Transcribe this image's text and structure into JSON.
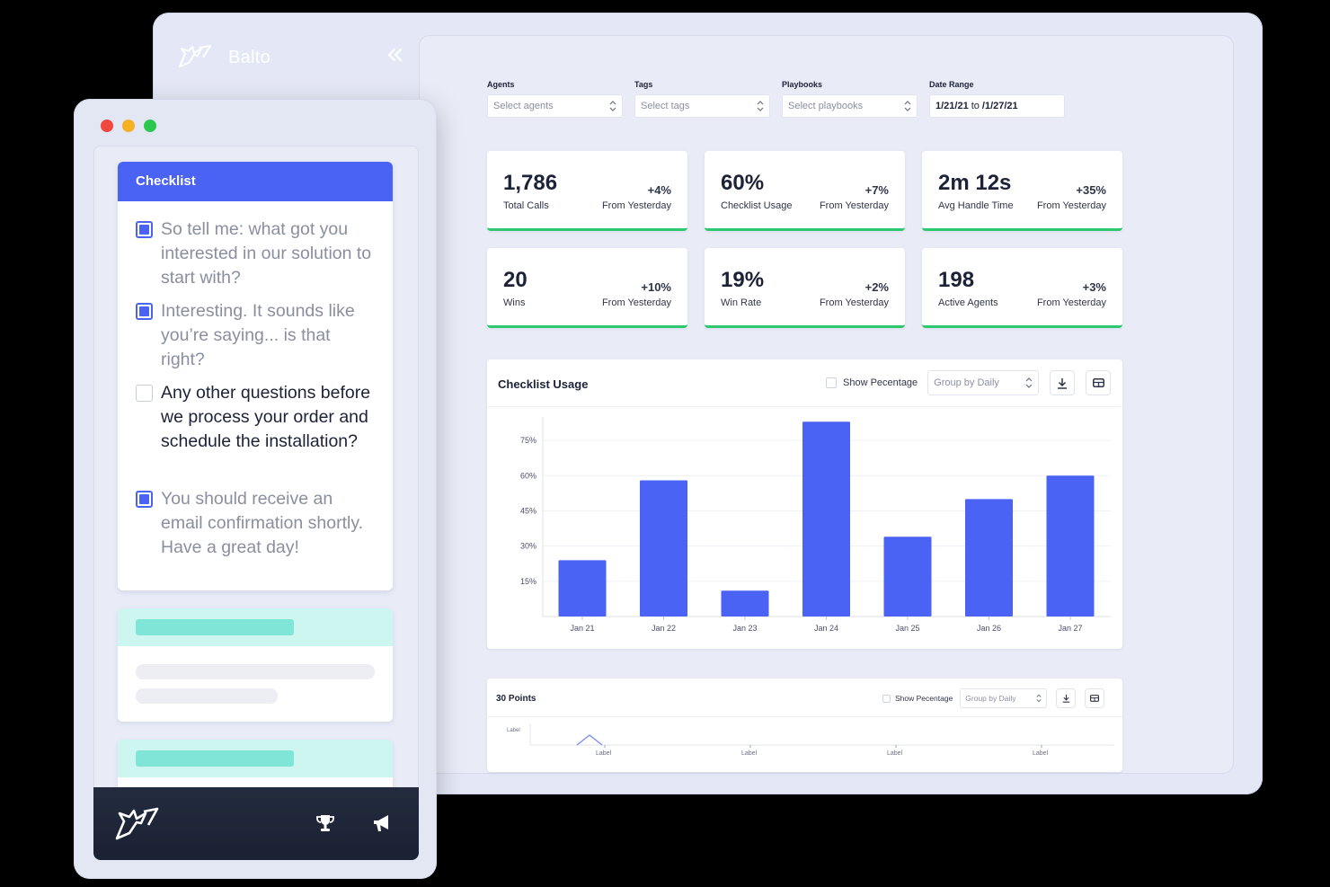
{
  "dashboard": {
    "brand": "Balto",
    "filters": [
      {
        "label": "Agents",
        "placeholder": "Select agents"
      },
      {
        "label": "Tags",
        "placeholder": "Select tags"
      },
      {
        "label": "Playbooks",
        "placeholder": "Select playbooks"
      }
    ],
    "date_range": {
      "label": "Date Range",
      "start": "1/21/21",
      "to": "to",
      "end": "/1/27/21"
    },
    "stats": [
      {
        "value": "1,786",
        "label": "Total Calls",
        "delta": "+4%",
        "sub": "From Yesterday"
      },
      {
        "value": "60%",
        "label": "Checklist Usage",
        "delta": "+7%",
        "sub": "From Yesterday"
      },
      {
        "value": "2m 12s",
        "label": "Avg Handle Time",
        "delta": "+35%",
        "sub": "From Yesterday"
      },
      {
        "value": "20",
        "label": "Wins",
        "delta": "+10%",
        "sub": "From Yesterday"
      },
      {
        "value": "19%",
        "label": "Win Rate",
        "delta": "+2%",
        "sub": "From Yesterday"
      },
      {
        "value": "198",
        "label": "Active Agents",
        "delta": "+3%",
        "sub": "From Yesterday"
      }
    ],
    "checklist_panel": {
      "title": "Checklist Usage",
      "show_percentage": "Show Pecentage",
      "group_by": "Group by Daily"
    },
    "points_panel": {
      "title": "30 Points",
      "show_percentage": "Show Pecentage",
      "group_by": "Group by Daily",
      "y_label": "Label",
      "x_labels": [
        "Label",
        "Label",
        "Label",
        "Label"
      ]
    }
  },
  "chart_data": [
    {
      "type": "bar",
      "title": "Checklist Usage",
      "categories": [
        "Jan 21",
        "Jan 22",
        "Jan 23",
        "Jan 24",
        "Jan 25",
        "Jan 26",
        "Jan 27"
      ],
      "values": [
        24,
        58,
        11,
        83,
        34,
        50,
        60
      ],
      "yticks": [
        "15%",
        "30%",
        "45%",
        "60%",
        "75%"
      ],
      "ylim": [
        0,
        85
      ],
      "unit": "%",
      "grid": true,
      "color": "#4a63f4"
    }
  ],
  "checklist": {
    "title": "Checklist",
    "items": [
      {
        "text": "So tell me: what got you interested in our solution to start with?",
        "checked": true
      },
      {
        "text": "Interesting. It sounds like you’re saying... is that right?",
        "checked": true
      },
      {
        "text": "Any other questions before we process your order and schedule the installation?",
        "checked": false
      },
      {
        "text": "You should receive an email confirmation shortly. Have a great day!",
        "checked": true
      }
    ]
  },
  "footer": {
    "icons": [
      "balto-logo-icon",
      "trophy-icon",
      "megaphone-icon"
    ]
  },
  "colors": {
    "accent": "#4a63f4",
    "success": "#2dc86f",
    "teal": "#7fe6d7"
  }
}
